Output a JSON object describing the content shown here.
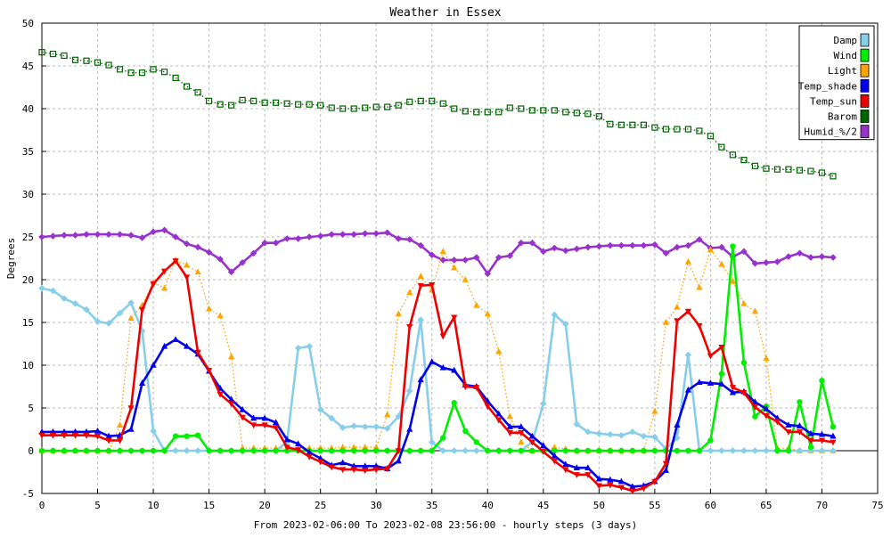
{
  "chart_data": {
    "type": "line",
    "title": "Weather in Essex",
    "xlabel": "From 2023-02-06:00 To 2023-02-08 23:56:00 - hourly steps (3 days)",
    "ylabel": "Degrees",
    "xlim": [
      0,
      75
    ],
    "ylim": [
      -5,
      50
    ],
    "xticks": [
      0,
      5,
      10,
      15,
      20,
      25,
      30,
      35,
      40,
      45,
      50,
      55,
      60,
      65,
      70,
      75
    ],
    "yticks": [
      -5,
      0,
      5,
      10,
      15,
      20,
      25,
      30,
      35,
      40,
      45,
      50
    ],
    "grid": true,
    "legend_position": "top-right",
    "series": [
      {
        "name": "Damp",
        "color": "#87ceeb",
        "marker": "diamond",
        "line": "solid",
        "values": [
          19,
          18.7,
          17.8,
          17.2,
          16.5,
          15.1,
          14.9,
          16.1,
          17.3,
          14,
          2.3,
          0,
          0,
          0,
          0,
          0,
          0,
          0,
          0,
          0,
          0,
          0,
          1,
          12,
          12.2,
          4.8,
          3.8,
          2.7,
          2.9,
          2.8,
          2.8,
          2.6,
          4,
          7,
          15.3,
          1,
          0,
          0,
          0,
          0,
          0,
          0,
          0,
          0,
          1,
          5.5,
          15.9,
          14.8,
          3.1,
          2.2,
          2,
          1.9,
          1.8,
          2.2,
          1.7,
          1.6,
          0.2,
          1.5,
          11.2,
          0,
          0,
          0,
          0,
          0,
          0,
          0,
          0,
          0,
          0,
          0,
          0,
          0
        ]
      },
      {
        "name": "Wind",
        "color": "#00ee00",
        "marker": "circle",
        "line": "solid",
        "values": [
          0,
          0,
          0,
          0,
          0,
          0,
          0,
          0,
          0,
          0,
          0,
          0,
          1.7,
          1.7,
          1.8,
          0,
          0,
          0,
          0,
          0,
          0,
          0,
          0,
          0,
          0,
          0,
          0,
          0,
          0,
          0,
          0,
          0,
          0,
          0,
          0,
          0,
          1.5,
          5.6,
          2.3,
          1,
          0,
          0,
          0,
          0,
          0,
          0,
          0,
          0,
          0,
          0,
          0,
          0,
          0,
          0,
          0,
          0,
          0,
          0,
          0,
          0,
          1.2,
          9,
          23.9,
          10.3,
          4,
          5.2,
          0,
          0,
          5.7,
          0.4,
          8.2,
          2.8
        ]
      },
      {
        "name": "Light",
        "color": "#ffa500",
        "marker": "triangle-up",
        "line": "dotted",
        "values": [
          0,
          0,
          0,
          0,
          0,
          0,
          0,
          3,
          15.5,
          17,
          19.7,
          19,
          22.3,
          21.7,
          20.9,
          16.6,
          15.8,
          11,
          0.3,
          0.3,
          0.3,
          0.3,
          0.3,
          0.3,
          0.3,
          0.3,
          0.3,
          0.4,
          0.4,
          0.4,
          0.4,
          4.2,
          16,
          18.5,
          20.4,
          18.8,
          23.3,
          21.4,
          20,
          17,
          16,
          11.6,
          4,
          1,
          0,
          0,
          0.4,
          0.2,
          0,
          0,
          0,
          0,
          0,
          0,
          0,
          4.6,
          15,
          16.8,
          22.1,
          19.1,
          23.5,
          21.8,
          19.8,
          17.2,
          16.3,
          10.8,
          0.3,
          0.3,
          0,
          0,
          0,
          0
        ]
      },
      {
        "name": "Temp_shade",
        "color": "#0000ee",
        "marker": "triangle-up",
        "line": "solid",
        "values": [
          2.2,
          2.2,
          2.2,
          2.2,
          2.2,
          2.3,
          1.7,
          1.8,
          2.5,
          7.9,
          10,
          12.2,
          13,
          12.2,
          11.3,
          9.3,
          7.3,
          6,
          4.8,
          3.8,
          3.8,
          3.3,
          1.3,
          0.8,
          -0.2,
          -0.9,
          -1.7,
          -1.4,
          -1.8,
          -1.8,
          -1.8,
          -2.1,
          -1.2,
          2.5,
          8.3,
          10.4,
          9.7,
          9.4,
          7.7,
          7.5,
          5.8,
          4.3,
          2.8,
          2.8,
          1.7,
          0.6,
          -0.6,
          -1.6,
          -2,
          -2,
          -3.3,
          -3.4,
          -3.6,
          -4.2,
          -4.1,
          -3.6,
          -2.3,
          3,
          7.1,
          8,
          7.9,
          7.8,
          6.8,
          6.9,
          5.7,
          4.9,
          3.8,
          3,
          2.9,
          2,
          1.9,
          1.7
        ]
      },
      {
        "name": "Temp_sun",
        "color": "#ee0000",
        "marker": "triangle-down",
        "line": "solid",
        "values": [
          1.8,
          1.8,
          1.8,
          1.8,
          1.8,
          1.7,
          1.2,
          1.2,
          5,
          16.5,
          19.5,
          21,
          22.2,
          20.3,
          11.5,
          9.4,
          6.6,
          5.5,
          3.9,
          3,
          3,
          2.7,
          0.4,
          0.1,
          -0.7,
          -1.3,
          -1.9,
          -2.2,
          -2.2,
          -2.3,
          -2.2,
          -2.1,
          0,
          14.5,
          19.3,
          19.4,
          13.4,
          15.6,
          7.5,
          7.4,
          5.2,
          3.6,
          2.1,
          2.1,
          1,
          -0.1,
          -1.2,
          -2.2,
          -2.8,
          -2.8,
          -4.1,
          -4,
          -4.3,
          -4.7,
          -4.4,
          -3.6,
          -1.5,
          15.2,
          16.3,
          14.6,
          11.1,
          12.1,
          7.4,
          6.8,
          5.1,
          4.1,
          3.4,
          2.2,
          2.2,
          1.2,
          1.2,
          1
        ]
      },
      {
        "name": "Barom",
        "color": "#006400",
        "marker": "square",
        "line": "dotted",
        "values": [
          46.6,
          46.4,
          46.2,
          45.7,
          45.6,
          45.4,
          45.1,
          44.6,
          44.2,
          44.2,
          44.6,
          44.3,
          43.6,
          42.6,
          41.9,
          40.9,
          40.5,
          40.4,
          41,
          40.9,
          40.7,
          40.7,
          40.6,
          40.5,
          40.5,
          40.4,
          40.1,
          40,
          40,
          40.1,
          40.2,
          40.2,
          40.4,
          40.8,
          40.9,
          40.9,
          40.6,
          40,
          39.7,
          39.6,
          39.6,
          39.6,
          40.1,
          40,
          39.8,
          39.8,
          39.8,
          39.6,
          39.5,
          39.4,
          39.1,
          38.2,
          38.1,
          38.1,
          38.1,
          37.8,
          37.6,
          37.6,
          37.6,
          37.4,
          36.8,
          35.5,
          34.6,
          34,
          33.3,
          33,
          32.9,
          32.9,
          32.8,
          32.7,
          32.5,
          32.1
        ]
      },
      {
        "name": "Humid_%/2",
        "color": "#9932cc",
        "marker": "diamond",
        "line": "solid",
        "values": [
          25,
          25.1,
          25.2,
          25.2,
          25.3,
          25.3,
          25.3,
          25.3,
          25.2,
          24.9,
          25.6,
          25.8,
          25,
          24.2,
          23.8,
          23.2,
          22.4,
          20.9,
          22,
          23.1,
          24.3,
          24.3,
          24.8,
          24.8,
          25,
          25.1,
          25.3,
          25.3,
          25.3,
          25.4,
          25.4,
          25.5,
          24.8,
          24.7,
          24,
          22.9,
          22.3,
          22.3,
          22.3,
          22.6,
          20.7,
          22.6,
          22.8,
          24.3,
          24.3,
          23.3,
          23.7,
          23.4,
          23.6,
          23.8,
          23.9,
          24,
          24,
          24,
          24,
          24.1,
          23.1,
          23.8,
          24,
          24.7,
          23.7,
          23.8,
          22.7,
          23.3,
          21.9,
          22,
          22.1,
          22.7,
          23.1,
          22.6,
          22.7,
          22.6
        ]
      }
    ]
  }
}
